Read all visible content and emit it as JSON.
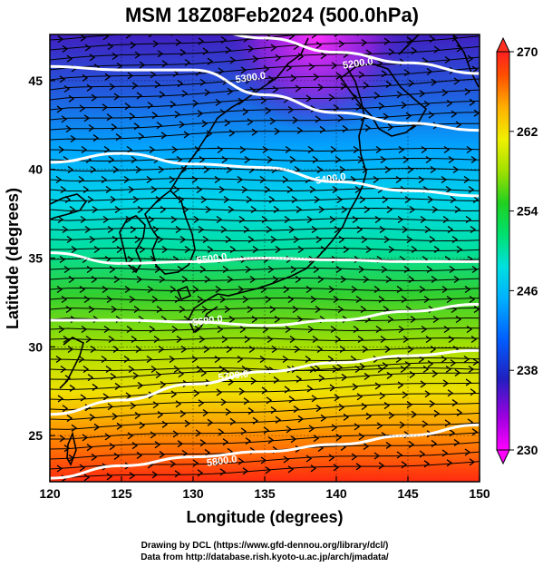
{
  "chart_data": {
    "type": "heatmap",
    "title": "MSM 18Z08Feb2024 (500.0hPa)",
    "xlabel": "Longitude (degrees)",
    "ylabel": "Latitude  (degrees)",
    "xlim": [
      120,
      150
    ],
    "ylim": [
      22.4,
      47.6
    ],
    "x_ticks": [
      "120",
      "125",
      "130",
      "135",
      "140",
      "145",
      "150"
    ],
    "y_ticks": [
      "25",
      "30",
      "35",
      "40",
      "45"
    ],
    "x_tick_values": [
      120,
      125,
      130,
      135,
      140,
      145,
      150
    ],
    "y_tick_values": [
      25,
      30,
      35,
      40,
      45
    ],
    "grid": true,
    "colorbar": {
      "min": 230,
      "max": 270,
      "labels": [
        "270",
        "262",
        "254",
        "246",
        "238",
        "230"
      ],
      "label_values": [
        270,
        262,
        254,
        246,
        238,
        230
      ],
      "colors": [
        "#ff00ff",
        "#a000e0",
        "#2020c0",
        "#0060ff",
        "#00b0ff",
        "#00e0e0",
        "#00e070",
        "#20d020",
        "#a0e000",
        "#f0f000",
        "#ffb000",
        "#ff5000",
        "#ff2020"
      ]
    },
    "contours": [
      {
        "label": "5200.0",
        "value": 5200,
        "label_lon": 141.5,
        "label_lat": 46.0,
        "points": [
          [
            121,
            48.6
          ],
          [
            125,
            48.4
          ],
          [
            130,
            48.0
          ],
          [
            135,
            47.4
          ],
          [
            140,
            46.6
          ],
          [
            145,
            46.0
          ],
          [
            150,
            45.4
          ]
        ]
      },
      {
        "label": "5300.0",
        "value": 5300,
        "label_lon": 134.0,
        "label_lat": 45.2,
        "points": [
          [
            120,
            45.8
          ],
          [
            125,
            45.6
          ],
          [
            130,
            45.6
          ],
          [
            135,
            44.2
          ],
          [
            140,
            43.2
          ],
          [
            145,
            42.6
          ],
          [
            150,
            42.2
          ]
        ]
      },
      {
        "label": "5400.0",
        "value": 5400,
        "label_lon": 139.6,
        "label_lat": 39.5,
        "points": [
          [
            120,
            40.4
          ],
          [
            125,
            40.9
          ],
          [
            130,
            40.3
          ],
          [
            135,
            40.1
          ],
          [
            140,
            39.3
          ],
          [
            145,
            38.8
          ],
          [
            150,
            38.5
          ]
        ]
      },
      {
        "label": "5500.0",
        "value": 5500,
        "label_lon": 131.3,
        "label_lat": 35.0,
        "points": [
          [
            120,
            35.3
          ],
          [
            125,
            34.7
          ],
          [
            130,
            34.8
          ],
          [
            135,
            35.0
          ],
          [
            140,
            34.9
          ],
          [
            145,
            34.8
          ],
          [
            150,
            34.8
          ]
        ]
      },
      {
        "label": "5600.0",
        "value": 5600,
        "label_lon": 131.0,
        "label_lat": 31.5,
        "points": [
          [
            120,
            31.5
          ],
          [
            125,
            31.5
          ],
          [
            130,
            31.4
          ],
          [
            135,
            31.2
          ],
          [
            140,
            31.5
          ],
          [
            145,
            32.0
          ],
          [
            150,
            32.4
          ]
        ]
      },
      {
        "label": "5700.0",
        "value": 5700,
        "label_lon": 132.8,
        "label_lat": 28.4,
        "points": [
          [
            120,
            26.2
          ],
          [
            125,
            27.0
          ],
          [
            130,
            27.9
          ],
          [
            135,
            28.6
          ],
          [
            140,
            29.1
          ],
          [
            145,
            29.5
          ],
          [
            150,
            29.8
          ]
        ]
      },
      {
        "label": "5800.0",
        "value": 5800,
        "label_lon": 132.0,
        "label_lat": 23.6,
        "points": [
          [
            120,
            22.6
          ],
          [
            125,
            23.3
          ],
          [
            130,
            23.8
          ],
          [
            135,
            24.1
          ],
          [
            140,
            24.5
          ],
          [
            145,
            25.0
          ],
          [
            150,
            25.6
          ]
        ]
      }
    ]
  },
  "credits": {
    "line1": "Drawing by DCL (https://www.gfd-dennou.org/library/dcl/)",
    "line2": "Data from http://database.rish.kyoto-u.ac.jp/arch/jmadata/"
  }
}
